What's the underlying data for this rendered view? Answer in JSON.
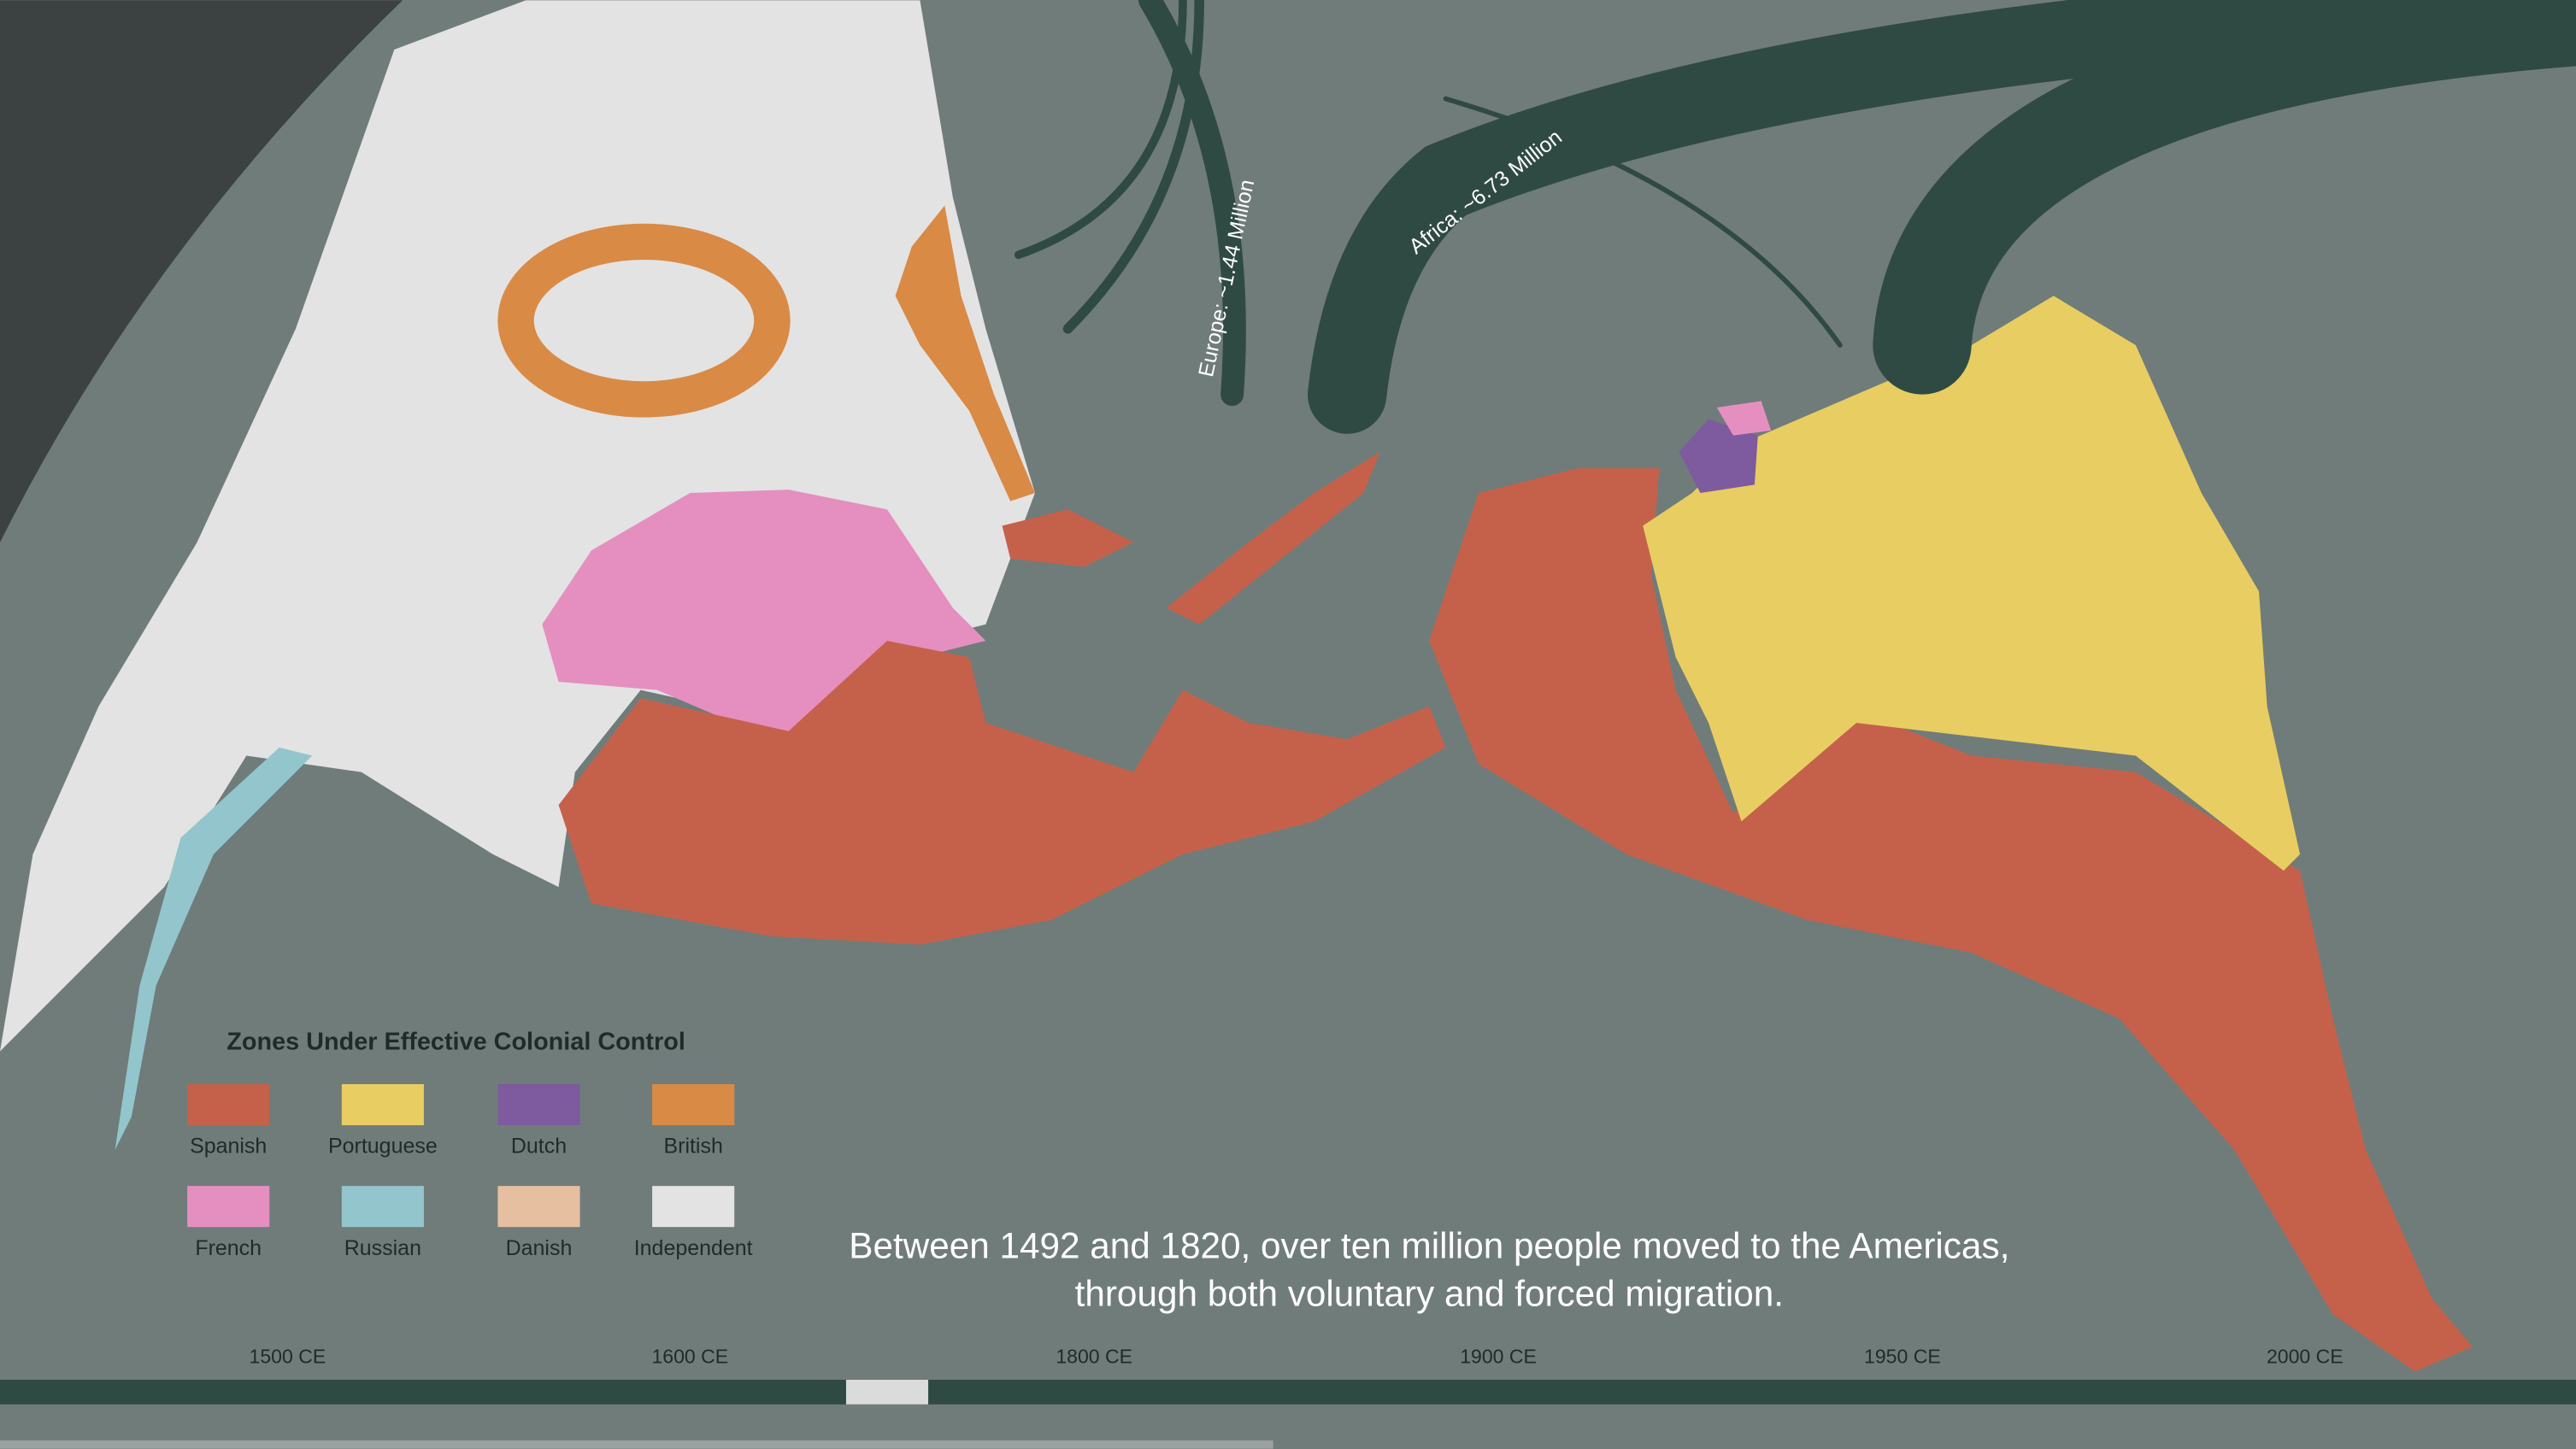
{
  "map": {
    "legend": {
      "title": "Zones Under Effective Colonial Control",
      "items": [
        {
          "label": "Spanish",
          "color": "#c5614b"
        },
        {
          "label": "Portuguese",
          "color": "#e8cd62"
        },
        {
          "label": "Dutch",
          "color": "#7d5b9e"
        },
        {
          "label": "British",
          "color": "#d98a45"
        },
        {
          "label": "French",
          "color": "#e58fc0"
        },
        {
          "label": "Russian",
          "color": "#93c5cd"
        },
        {
          "label": "Danish",
          "color": "#e6bfa0"
        },
        {
          "label": "Independent",
          "color": "#e3e3e3"
        }
      ]
    },
    "arrows": [
      {
        "label": "Europe: ~1.44 Million"
      },
      {
        "label": "Africa: ~6.73 Million"
      }
    ],
    "caption": [
      "Between 1492 and 1820, over ten million people moved to the Americas,",
      "through both voluntary and forced migration."
    ],
    "timeline": [
      "1500 CE",
      "1600 CE",
      "1800 CE",
      "1900 CE",
      "1950 CE",
      "2000 CE"
    ]
  }
}
